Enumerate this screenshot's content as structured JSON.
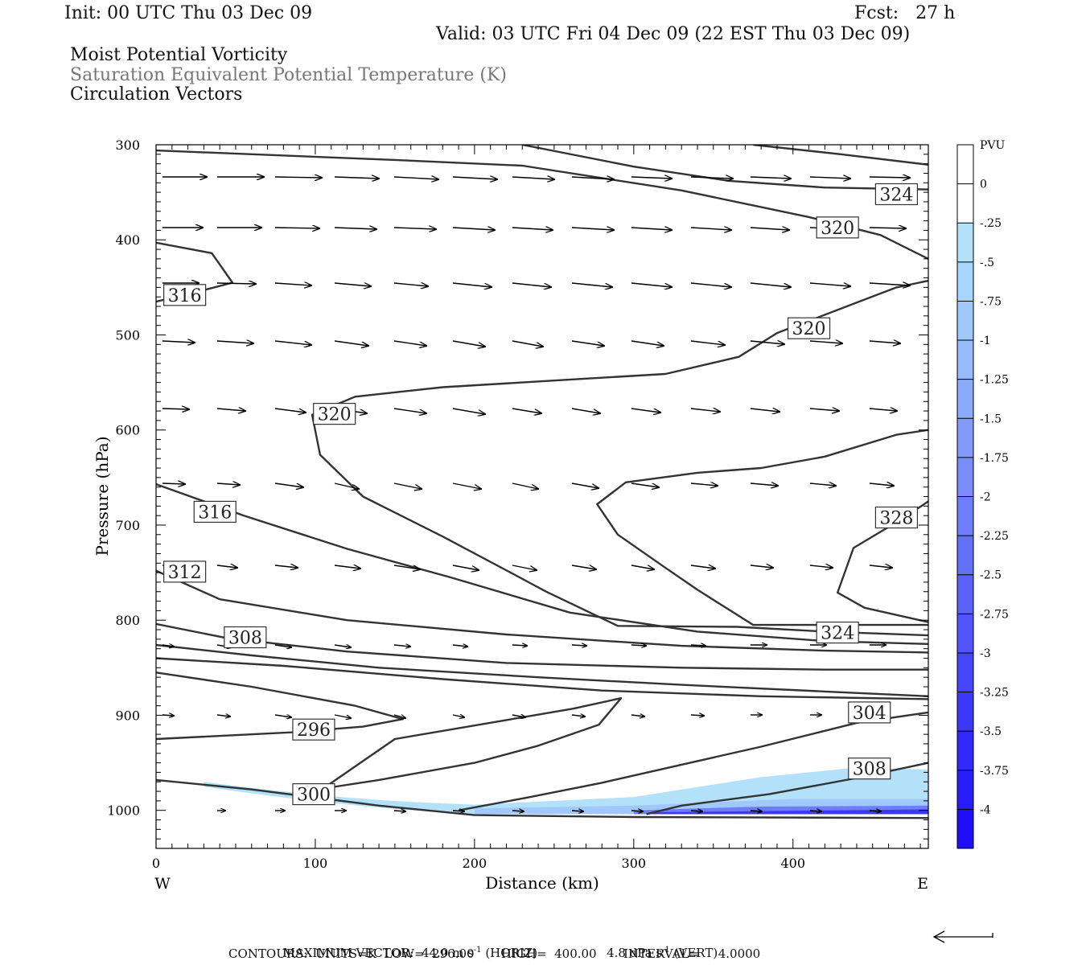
{
  "header": {
    "init": "Init: 00 UTC Thu 03 Dec 09",
    "fcst": "Fcst:   27 h",
    "valid": "Valid: 03 UTC Fri 04 Dec 09 (22 EST Thu 03 Dec 09)"
  },
  "titles": {
    "line1": "Moist Potential Vorticity",
    "line2": "Saturation Equivalent Potential Temperature (K)",
    "line3": "Circulation Vectors"
  },
  "colors": {
    "contour": "#333333",
    "vector": "#000000",
    "gray_title": "#777777"
  },
  "footer": {
    "max_vector_label": "MAXIMUM VECTOR:",
    "max_horiz": "44.0 m s",
    "horiz_exp": "-1",
    "horiz_tag": "(HORIZ)",
    "max_vert": "4.8 dPa s",
    "vert_exp": "-1",
    "vert_tag": "(VERT)",
    "contours": "CONTOURS:  UNITS=K  LOW=  296.00       HIGH=  400.00       INTERVAL=     4.0000"
  },
  "chart_data": {
    "type": "contour",
    "xlabel": "Distance (km)",
    "ylabel": "Pressure (hPa)",
    "xlim": [
      0,
      485
    ],
    "ylim": [
      1040,
      300
    ],
    "x_ticks": [
      0,
      100,
      200,
      300,
      400
    ],
    "y_ticks": [
      300,
      400,
      500,
      600,
      700,
      800,
      900,
      1000
    ],
    "x_end_labels": {
      "left": "W",
      "right": "E"
    },
    "colorbar": {
      "unit": "PVU",
      "labels": [
        "0",
        "-.25",
        "-.5",
        "-.75",
        "-1",
        "-1.25",
        "-1.5",
        "-1.75",
        "-2",
        "-2.25",
        "-2.5",
        "-2.75",
        "-3",
        "-3.25",
        "-3.5",
        "-3.75",
        "-4"
      ],
      "colors": [
        "#ffffff",
        "#ffffff",
        "#b4e1fa",
        "#a8d6fa",
        "#a0c8fa",
        "#96bafa",
        "#8caafa",
        "#829afa",
        "#788cfa",
        "#6e7efa",
        "#6470fa",
        "#5a62fa",
        "#5054fa",
        "#4646fa",
        "#3c38fa",
        "#322afa",
        "#281cfa",
        "#1e0efa"
      ]
    },
    "contour_labels": [
      {
        "text": "324",
        "x": 465,
        "p": 352
      },
      {
        "text": "320",
        "x": 428,
        "p": 387
      },
      {
        "text": "316",
        "x": 18,
        "p": 458
      },
      {
        "text": "320",
        "x": 410,
        "p": 493
      },
      {
        "text": "320",
        "x": 112,
        "p": 583
      },
      {
        "text": "316",
        "x": 37,
        "p": 686
      },
      {
        "text": "328",
        "x": 465,
        "p": 692
      },
      {
        "text": "312",
        "x": 18,
        "p": 749
      },
      {
        "text": "308",
        "x": 56,
        "p": 818
      },
      {
        "text": "324",
        "x": 428,
        "p": 813
      },
      {
        "text": "304",
        "x": 448,
        "p": 897
      },
      {
        "text": "296",
        "x": 99,
        "p": 915
      },
      {
        "text": "308",
        "x": 448,
        "p": 956
      },
      {
        "text": "300",
        "x": 99,
        "p": 983
      }
    ],
    "contours": [
      {
        "level": 324,
        "points": [
          [
            0,
            306
          ],
          [
            150,
            316
          ],
          [
            230,
            322
          ],
          [
            330,
            348
          ],
          [
            410,
            376
          ],
          [
            455,
            395
          ],
          [
            485,
            420
          ]
        ]
      },
      {
        "level": 324,
        "points": [
          [
            230,
            300
          ],
          [
            300,
            323
          ],
          [
            360,
            338
          ],
          [
            420,
            345
          ],
          [
            485,
            347
          ]
        ]
      },
      {
        "level": 328,
        "points": [
          [
            375,
            300
          ],
          [
            430,
            310
          ],
          [
            485,
            321
          ]
        ]
      },
      {
        "level": 316,
        "points": [
          [
            0,
            403
          ],
          [
            35,
            414
          ],
          [
            48,
            445
          ],
          [
            25,
            455
          ],
          [
            0,
            465
          ]
        ]
      },
      {
        "level": 320,
        "points": [
          [
            485,
            443
          ],
          [
            465,
            450
          ],
          [
            440,
            466
          ],
          [
            390,
            498
          ],
          [
            366,
            523
          ],
          [
            320,
            541
          ],
          [
            250,
            548
          ],
          [
            180,
            555
          ],
          [
            125,
            565
          ],
          [
            98,
            584
          ],
          [
            103,
            626
          ],
          [
            130,
            670
          ],
          [
            180,
            712
          ],
          [
            225,
            752
          ],
          [
            245,
            770
          ],
          [
            290,
            806
          ],
          [
            365,
            807
          ],
          [
            420,
            812
          ],
          [
            485,
            816
          ]
        ]
      },
      {
        "level": 324,
        "points": [
          [
            485,
            600
          ],
          [
            465,
            605
          ],
          [
            420,
            628
          ],
          [
            380,
            640
          ],
          [
            340,
            645
          ],
          [
            295,
            655
          ],
          [
            277,
            678
          ],
          [
            290,
            710
          ],
          [
            320,
            745
          ],
          [
            340,
            768
          ],
          [
            375,
            805
          ],
          [
            485,
            805
          ]
        ]
      },
      {
        "level": 328,
        "points": [
          [
            485,
            675
          ],
          [
            468,
            694
          ],
          [
            438,
            724
          ],
          [
            428,
            771
          ],
          [
            445,
            787
          ],
          [
            485,
            802
          ]
        ]
      },
      {
        "level": 316,
        "points": [
          [
            0,
            657
          ],
          [
            55,
            690
          ],
          [
            120,
            725
          ],
          [
            185,
            755
          ],
          [
            260,
            792
          ],
          [
            340,
            812
          ],
          [
            420,
            822
          ],
          [
            485,
            825
          ]
        ]
      },
      {
        "level": 312,
        "points": [
          [
            0,
            748
          ],
          [
            40,
            778
          ],
          [
            120,
            800
          ],
          [
            220,
            815
          ],
          [
            330,
            827
          ],
          [
            420,
            832
          ],
          [
            485,
            834
          ]
        ]
      },
      {
        "level": 308,
        "points": [
          [
            0,
            804
          ],
          [
            45,
            819
          ],
          [
            120,
            833
          ],
          [
            220,
            845
          ],
          [
            330,
            850
          ],
          [
            420,
            852
          ],
          [
            485,
            852
          ]
        ]
      },
      {
        "level": 304,
        "points": [
          [
            0,
            826
          ],
          [
            60,
            837
          ],
          [
            140,
            850
          ],
          [
            240,
            860
          ],
          [
            330,
            868
          ],
          [
            420,
            875
          ],
          [
            485,
            880
          ]
        ]
      },
      {
        "level": 300,
        "points": [
          [
            0,
            840
          ],
          [
            80,
            848
          ],
          [
            180,
            862
          ],
          [
            280,
            874
          ],
          [
            380,
            880
          ],
          [
            485,
            883
          ]
        ]
      },
      {
        "level": 296,
        "points": [
          [
            0,
            925
          ],
          [
            85,
            918
          ],
          [
            130,
            912
          ],
          [
            155,
            904
          ],
          [
            125,
            890
          ],
          [
            60,
            870
          ],
          [
            0,
            855
          ]
        ]
      },
      {
        "level": 300,
        "points": [
          [
            105,
            977
          ],
          [
            140,
            968
          ],
          [
            200,
            950
          ],
          [
            240,
            932
          ],
          [
            278,
            910
          ],
          [
            292,
            882
          ],
          [
            262,
            893
          ],
          [
            220,
            905
          ],
          [
            150,
            925
          ],
          [
            105,
            977
          ]
        ]
      },
      {
        "level": 304,
        "points": [
          [
            190,
            1000
          ],
          [
            235,
            986
          ],
          [
            280,
            971
          ],
          [
            330,
            952
          ],
          [
            380,
            933
          ],
          [
            440,
            908
          ],
          [
            485,
            897
          ]
        ]
      },
      {
        "level": 308,
        "points": [
          [
            308,
            1004
          ],
          [
            330,
            995
          ],
          [
            385,
            983
          ],
          [
            440,
            966
          ],
          [
            485,
            950
          ]
        ]
      },
      {
        "level": 300,
        "points": [
          [
            0,
            968
          ],
          [
            60,
            978
          ],
          [
            140,
            995
          ],
          [
            200,
            1005
          ],
          [
            300,
            1007
          ],
          [
            485,
            1008
          ]
        ]
      }
    ],
    "shading": [
      {
        "pvu_band": "-.25 to -.5",
        "x": [
          30,
          485
        ],
        "p_top": 955,
        "p_bottom": 1004
      },
      {
        "pvu_band": "-2.75 to -4",
        "x": [
          300,
          485
        ],
        "p_top": 990,
        "p_bottom": 1004
      }
    ]
  }
}
